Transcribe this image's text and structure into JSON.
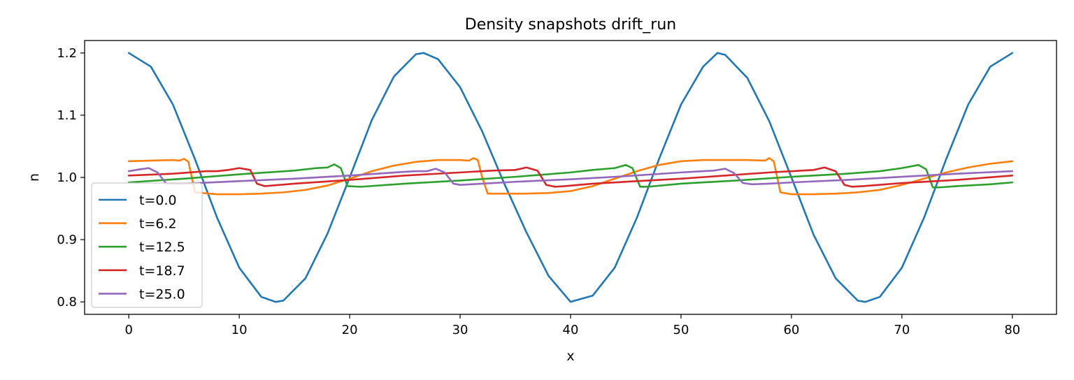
{
  "chart_data": {
    "type": "line",
    "title": "Density snapshots  drift_run",
    "xlabel": "x",
    "ylabel": "n",
    "xlim": [
      -4,
      84
    ],
    "ylim": [
      0.78,
      1.22
    ],
    "xticks": [
      0,
      10,
      20,
      30,
      40,
      50,
      60,
      70,
      80
    ],
    "xtick_labels": [
      "0",
      "10",
      "20",
      "30",
      "40",
      "50",
      "60",
      "70",
      "80"
    ],
    "yticks": [
      0.8,
      0.9,
      1.0,
      1.1,
      1.2
    ],
    "ytick_labels": [
      "0.8",
      "0.9",
      "1.0",
      "1.1",
      "1.2"
    ],
    "grid": false,
    "legend_position": "lower-left",
    "series": [
      {
        "name": "t=0.0",
        "color": "#1f77b4",
        "x": [
          0,
          2,
          4,
          6,
          8,
          10,
          12,
          13.3,
          14,
          16,
          18,
          20,
          22,
          24,
          26,
          26.7,
          28,
          30,
          32,
          34,
          36,
          38,
          40,
          42,
          44,
          46,
          48,
          50,
          52,
          53.3,
          54,
          56,
          58,
          60,
          62,
          64,
          66,
          66.7,
          68,
          70,
          72,
          74,
          76,
          78,
          80
        ],
        "y": [
          1.2,
          1.178,
          1.117,
          1.029,
          0.935,
          0.855,
          0.808,
          0.8,
          0.802,
          0.838,
          0.91,
          1.0,
          1.092,
          1.162,
          1.198,
          1.2,
          1.19,
          1.145,
          1.074,
          0.99,
          0.912,
          0.842,
          0.8,
          0.81,
          0.855,
          0.935,
          1.029,
          1.117,
          1.178,
          1.2,
          1.197,
          1.16,
          1.09,
          1.0,
          0.908,
          0.838,
          0.802,
          0.8,
          0.808,
          0.855,
          0.935,
          1.029,
          1.117,
          1.178,
          1.2
        ]
      },
      {
        "name": "t=6.2",
        "color": "#ff7f0e",
        "x": [
          0,
          2,
          4,
          4.6,
          5,
          5.4,
          6,
          8,
          10,
          12,
          14,
          16,
          18,
          20,
          22,
          24,
          26,
          28,
          30,
          30.8,
          31.2,
          31.6,
          32,
          32.5,
          34,
          36,
          38,
          40,
          42,
          44,
          46,
          48,
          50,
          52,
          54,
          56,
          57.6,
          58,
          58.4,
          59,
          60,
          62,
          64,
          66,
          68,
          70,
          72,
          74,
          76,
          78,
          80
        ],
        "y": [
          1.026,
          1.027,
          1.028,
          1.027,
          1.03,
          1.025,
          0.976,
          0.973,
          0.973,
          0.974,
          0.976,
          0.98,
          0.987,
          0.998,
          1.01,
          1.019,
          1.025,
          1.028,
          1.028,
          1.027,
          1.031,
          1.028,
          1.0,
          0.974,
          0.974,
          0.974,
          0.975,
          0.978,
          0.986,
          0.998,
          1.01,
          1.02,
          1.026,
          1.028,
          1.028,
          1.028,
          1.027,
          1.031,
          1.026,
          0.976,
          0.973,
          0.973,
          0.974,
          0.976,
          0.98,
          0.988,
          0.998,
          1.008,
          1.016,
          1.022,
          1.026
        ]
      },
      {
        "name": "t=12.5",
        "color": "#2ca02c",
        "x": [
          0,
          5,
          10,
          15,
          17,
          18,
          18.6,
          19.2,
          19.8,
          21,
          25,
          30,
          35,
          40,
          42,
          44,
          45,
          45.6,
          46.3,
          47,
          50,
          55,
          60,
          65,
          68,
          70,
          71.5,
          72.2,
          72.8,
          73.4,
          75,
          78,
          80
        ],
        "y": [
          0.992,
          0.998,
          1.005,
          1.011,
          1.015,
          1.016,
          1.021,
          1.015,
          0.986,
          0.985,
          0.99,
          0.995,
          1.001,
          1.008,
          1.012,
          1.015,
          1.02,
          1.015,
          0.985,
          0.985,
          0.99,
          0.995,
          1.001,
          1.006,
          1.01,
          1.015,
          1.02,
          1.013,
          0.984,
          0.984,
          0.986,
          0.989,
          0.992
        ]
      },
      {
        "name": "t=18.7",
        "color": "#d62728",
        "x": [
          0,
          4,
          7,
          8,
          9,
          10,
          11,
          11.6,
          12.3,
          13,
          15,
          20,
          25,
          30,
          33,
          35,
          36,
          37,
          37.8,
          38.6,
          39.5,
          42,
          46,
          50,
          54,
          58,
          61,
          62,
          63,
          64,
          64.8,
          65.5,
          66.5,
          70,
          75,
          80
        ],
        "y": [
          1.003,
          1.006,
          1.01,
          1.01,
          1.012,
          1.015,
          1.012,
          0.99,
          0.986,
          0.987,
          0.99,
          0.996,
          1.003,
          1.008,
          1.011,
          1.012,
          1.016,
          1.011,
          0.988,
          0.985,
          0.986,
          0.99,
          0.994,
          0.998,
          1.003,
          1.008,
          1.011,
          1.012,
          1.016,
          1.01,
          0.988,
          0.985,
          0.986,
          0.991,
          0.996,
          1.003
        ]
      },
      {
        "name": "t=25.0",
        "color": "#9467bd",
        "x": [
          0,
          1,
          1.8,
          2.6,
          3.4,
          5,
          10,
          15,
          20,
          25,
          26,
          27,
          27.8,
          28.6,
          29.4,
          30,
          32,
          35,
          40,
          45,
          50,
          52,
          53,
          54,
          54.8,
          55.6,
          56.4,
          58,
          60,
          65,
          70,
          75,
          80
        ],
        "y": [
          1.01,
          1.013,
          1.015,
          1.008,
          0.99,
          0.99,
          0.994,
          0.998,
          1.003,
          1.009,
          1.01,
          1.01,
          1.014,
          1.008,
          0.99,
          0.988,
          0.99,
          0.993,
          0.997,
          1.002,
          1.008,
          1.01,
          1.011,
          1.014,
          1.007,
          0.991,
          0.989,
          0.99,
          0.992,
          0.996,
          1.001,
          1.006,
          1.01
        ]
      }
    ]
  }
}
